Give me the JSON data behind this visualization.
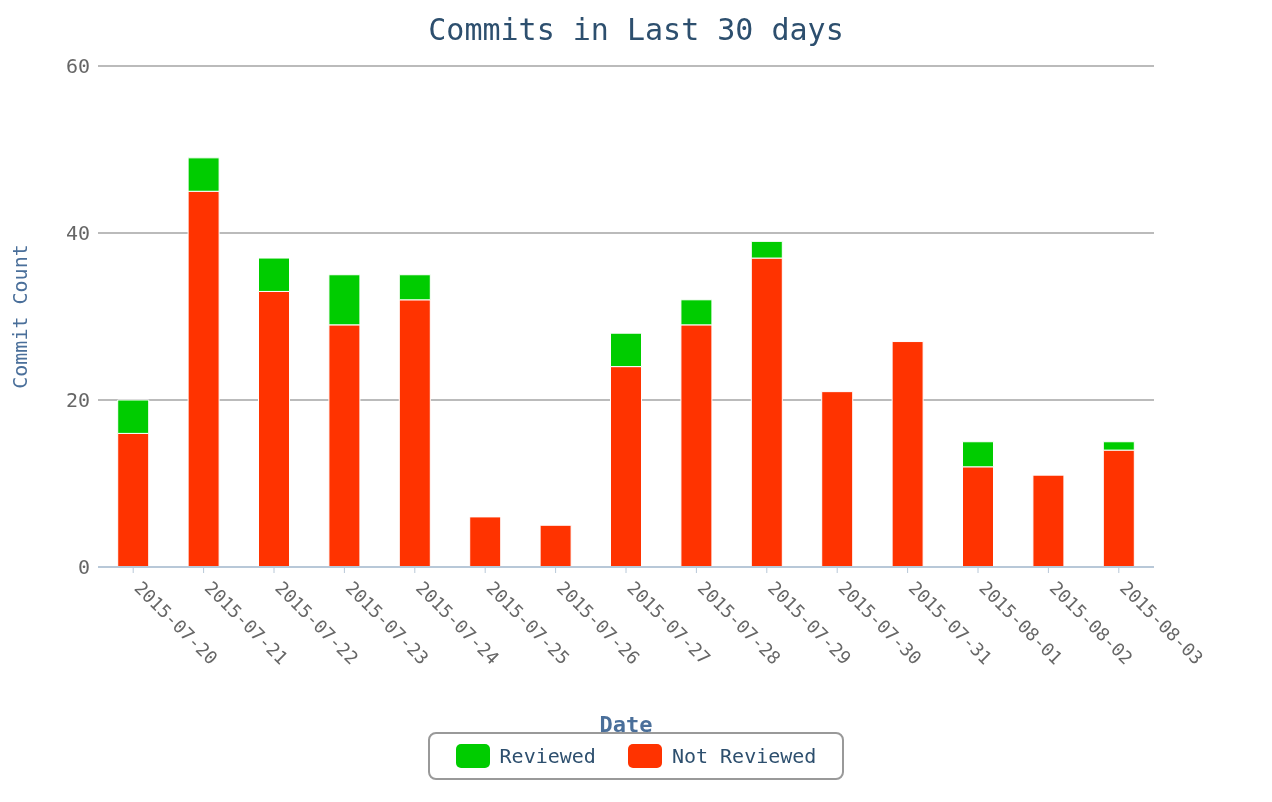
{
  "chart_data": {
    "type": "bar",
    "title": "Commits in Last 30 days",
    "xlabel": "Date",
    "ylabel": "Commit Count",
    "categories": [
      "2015-07-20",
      "2015-07-21",
      "2015-07-22",
      "2015-07-23",
      "2015-07-24",
      "2015-07-25",
      "2015-07-26",
      "2015-07-27",
      "2015-07-28",
      "2015-07-29",
      "2015-07-30",
      "2015-07-31",
      "2015-08-01",
      "2015-08-02",
      "2015-08-03"
    ],
    "series": [
      {
        "name": "Not Reviewed",
        "color": "#ff3300",
        "values": [
          16,
          45,
          33,
          29,
          32,
          6,
          5,
          24,
          29,
          37,
          21,
          27,
          12,
          11,
          14
        ]
      },
      {
        "name": "Reviewed",
        "color": "#00cc00",
        "values": [
          4,
          4,
          4,
          6,
          3,
          0,
          0,
          4,
          3,
          2,
          0,
          0,
          3,
          0,
          1
        ]
      }
    ],
    "stacked": true,
    "ylim": [
      0,
      60
    ],
    "yticks": [
      0,
      20,
      40,
      60
    ],
    "grid": "y",
    "legend": "bottom"
  }
}
